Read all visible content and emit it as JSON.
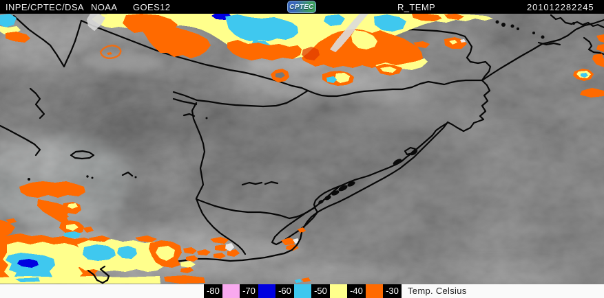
{
  "header": {
    "source": "INPE/CPTEC/DSA",
    "agency": "NOAA",
    "satellite": "GOES12",
    "logo": "CPTEC",
    "product": "R_TEMP",
    "timestamp": "201012282245"
  },
  "legend": {
    "title": "Temp. Celsius",
    "items": [
      {
        "label": "-80",
        "swatch": "#f9a9ef"
      },
      {
        "label": "-70",
        "swatch": "#0000e0"
      },
      {
        "label": "-60",
        "swatch": "#3fc8ef"
      },
      {
        "label": "-50",
        "swatch": "#ffff8c"
      },
      {
        "label": "-40",
        "swatch": "#ff6a00"
      },
      {
        "label": "-30",
        "swatch": null
      }
    ]
  },
  "colors": {
    "header_bg": "#000000",
    "header_text": "#f2f2f2",
    "strip_bg": "#fafafa",
    "label_box_bg": "#000000",
    "label_box_text": "#ffffff",
    "map_line": "#070707"
  }
}
